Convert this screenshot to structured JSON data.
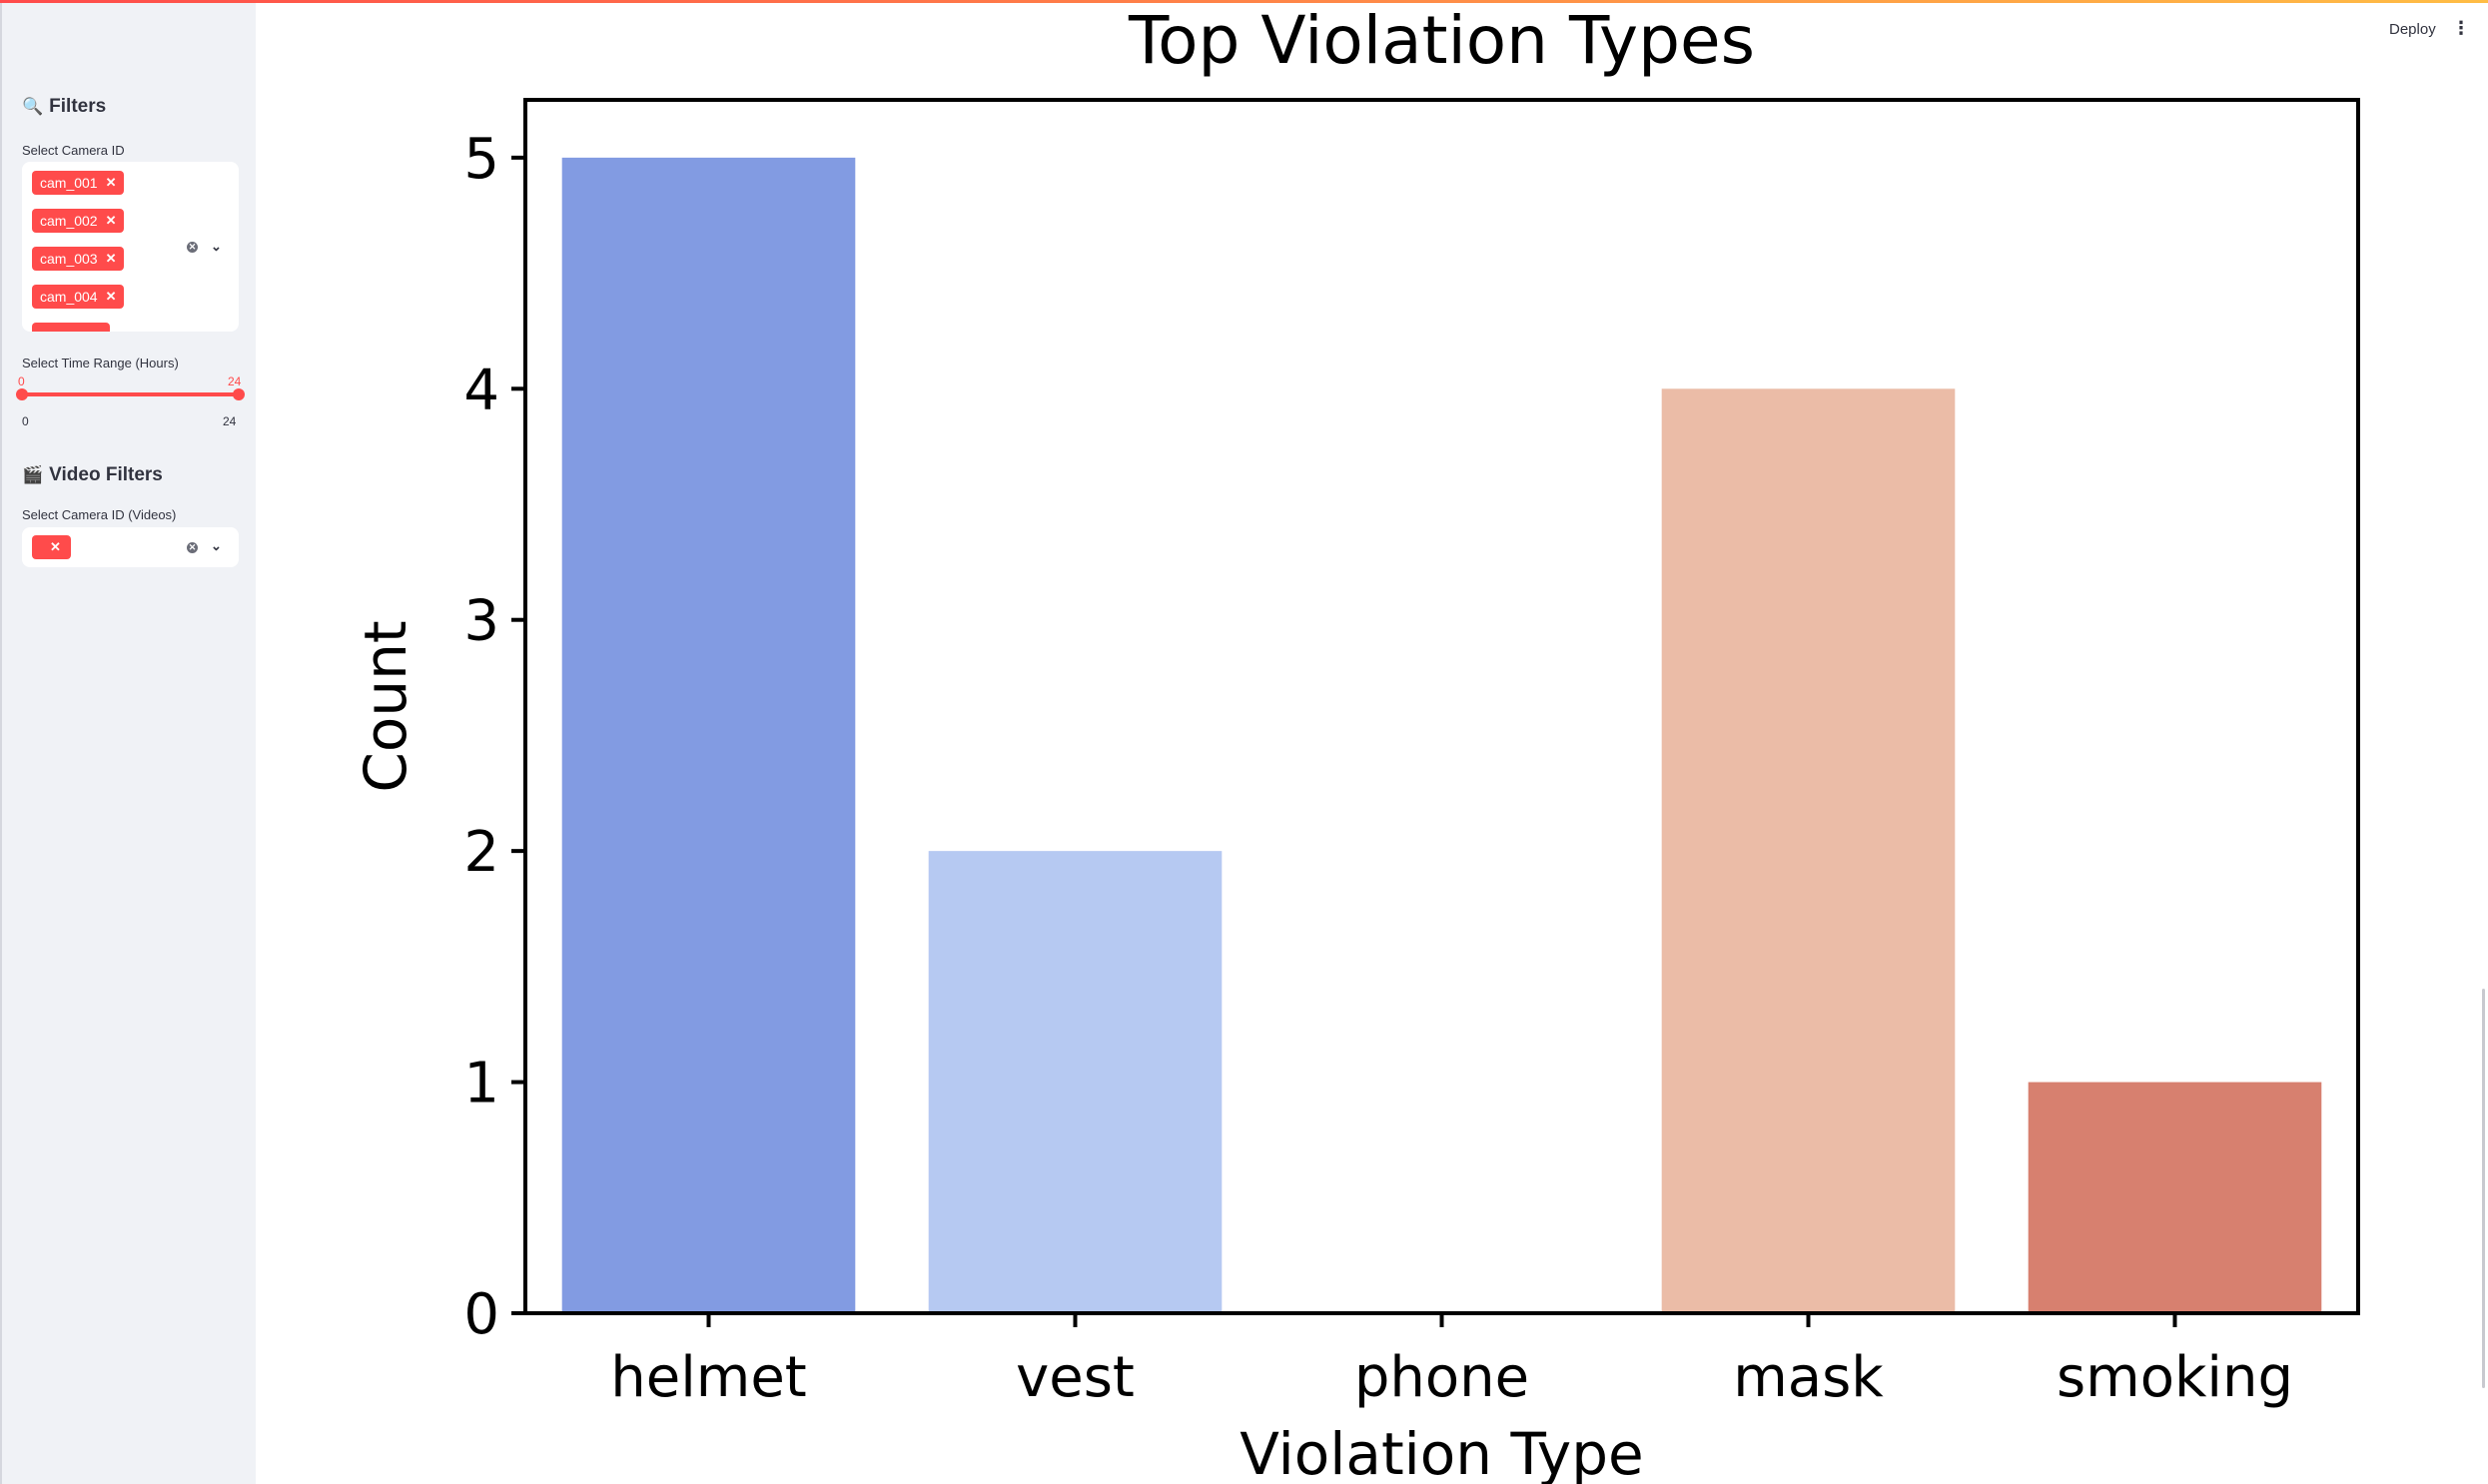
{
  "app": {
    "deploy_label": "Deploy",
    "menu_icon": "kebab-menu-icon"
  },
  "sidebar": {
    "filters_header": {
      "icon": "magnifier-icon",
      "glyph": "🔍",
      "label": "Filters"
    },
    "camera_select": {
      "label": "Select Camera ID",
      "selected": [
        "cam_001",
        "cam_002",
        "cam_003",
        "cam_004"
      ]
    },
    "time_range": {
      "label": "Select Time Range (Hours)",
      "low": "0",
      "high": "24",
      "min_label": "0",
      "max_label": "24"
    },
    "video_header": {
      "icon": "clapper-board-icon",
      "glyph": "🎬",
      "label": "Video Filters"
    },
    "video_camera_select": {
      "label": "Select Camera ID (Videos)",
      "selected": [
        ""
      ]
    }
  },
  "chart_data": {
    "type": "bar",
    "title": "Top Violation Types",
    "xlabel": "Violation Type",
    "ylabel": "Count",
    "categories": [
      "helmet",
      "vest",
      "phone",
      "mask",
      "smoking"
    ],
    "values": [
      5,
      2,
      0,
      4,
      1
    ],
    "colors": [
      "#829be2",
      "#b6c9f2",
      "#dcdde0",
      "#ebbca7",
      "#d7806f"
    ],
    "ylim": [
      0,
      5.25
    ],
    "yticks": [
      0,
      1,
      2,
      3,
      4,
      5
    ],
    "grid": false
  }
}
